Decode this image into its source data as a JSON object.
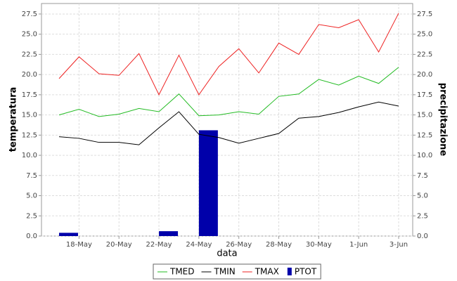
{
  "chart_data": {
    "type": "line",
    "x_label": "data",
    "y_label": "temperatura",
    "y2_label": "precipitazione",
    "categories": [
      null,
      "18-May",
      null,
      "20-May",
      null,
      "22-May",
      null,
      "24-May",
      null,
      "26-May",
      null,
      "28-May",
      null,
      "30-May",
      null,
      "1-Jun",
      null,
      "3-Jun"
    ],
    "series": [
      {
        "name": "TMED",
        "type": "line",
        "color": "#22bb22",
        "values": [
          15.0,
          15.7,
          14.8,
          15.1,
          15.8,
          15.4,
          17.6,
          14.9,
          15.0,
          15.4,
          15.1,
          17.3,
          17.6,
          19.4,
          18.7,
          19.8,
          18.9,
          20.9
        ]
      },
      {
        "name": "TMIN",
        "type": "line",
        "color": "#000000",
        "values": [
          12.3,
          12.1,
          11.6,
          11.6,
          11.3,
          13.4,
          15.4,
          12.6,
          12.2,
          11.5,
          12.1,
          12.7,
          14.6,
          14.8,
          15.3,
          16.0,
          16.6,
          16.1
        ]
      },
      {
        "name": "TMAX",
        "type": "line",
        "color": "#ee2222",
        "values": [
          19.5,
          22.2,
          20.1,
          19.9,
          22.6,
          17.5,
          22.4,
          17.5,
          21.0,
          23.2,
          20.2,
          23.9,
          22.5,
          26.2,
          25.8,
          26.8,
          22.8,
          27.6
        ]
      },
      {
        "name": "PTOT",
        "type": "bar",
        "axis": "y2",
        "color": "#0000aa",
        "values": [
          0.4,
          0,
          0,
          0,
          0,
          0.6,
          0,
          13.1,
          0,
          0,
          0,
          0,
          0,
          0,
          0,
          0,
          0,
          0
        ]
      }
    ],
    "ylim": [
      0,
      28.8
    ],
    "yticks": [
      {
        "value": 0,
        "label": "0.0"
      },
      2.5,
      {
        "value": 5,
        "label": "5.0"
      },
      7.5,
      {
        "value": 10,
        "label": "10.0"
      },
      12.5,
      {
        "value": 15,
        "label": "15.0"
      },
      17.5,
      {
        "value": 20,
        "label": "20.0"
      },
      22.5,
      {
        "value": 25,
        "label": "25.0"
      },
      27.5
    ],
    "y2lim": [
      0,
      28.8
    ],
    "y2ticks": [
      {
        "value": 0,
        "label": "0.0"
      },
      2.5,
      {
        "value": 5,
        "label": "5.0"
      },
      7.5,
      {
        "value": 10,
        "label": "10.0"
      },
      12.5,
      {
        "value": 15,
        "label": "15.0"
      },
      17.5,
      {
        "value": 20,
        "label": "20.0"
      },
      22.5,
      {
        "value": 25,
        "label": "25.0"
      },
      27.5
    ],
    "grid": true,
    "legend": "bottom"
  }
}
